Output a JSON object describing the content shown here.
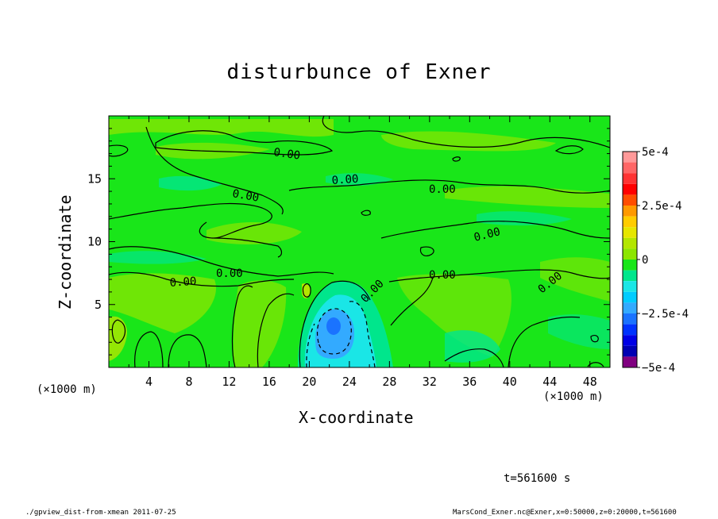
{
  "page": {
    "title": "disturbunce of Exner",
    "x_label": "X-coordinate",
    "y_label": "Z-coordinate",
    "x_unit_left": "(×1000 m)",
    "x_unit_right": "(×1000 m)",
    "time_label": "t=561600 s",
    "footer_left": "./gpview_dist-from-xmean  2011-07-25",
    "footer_right": "MarsCond_Exner.nc@Exner,x=0:50000,z=0:20000,t=561600"
  },
  "colors": {
    "field_base": "#19e619",
    "positive_light": "#8ce600",
    "negative_light": "#00e68c",
    "cyan": "#1ae6e6",
    "blue_light": "#33aaff",
    "blue_dark": "#1a73ff",
    "contour": "#000000"
  },
  "chart_data": {
    "type": "heatmap",
    "title": "disturbunce of Exner",
    "xlabel": "X-coordinate",
    "ylabel": "Z-coordinate",
    "xlim": [
      0,
      50
    ],
    "ylim": [
      0,
      20
    ],
    "x_ticks": [
      "4",
      "8",
      "12",
      "16",
      "20",
      "24",
      "28",
      "32",
      "36",
      "40",
      "44",
      "48"
    ],
    "y_ticks": [
      "5",
      "10",
      "15"
    ],
    "contour_labels": [
      "0.00",
      "0.00",
      "0.00",
      "0.00",
      "0.00",
      "0.00",
      "0.00",
      "0.00",
      "0.00",
      "0.00"
    ],
    "colorbar": {
      "tick_labels": [
        "5e-4",
        "2.5e-4",
        "0",
        "−2.5e-4",
        "−5e-4"
      ],
      "range": [
        -0.0005,
        0.0005
      ],
      "levels": [
        {
          "from": 0.00045,
          "to": 0.0005,
          "color": "#ff9999"
        },
        {
          "from": 0.0004,
          "to": 0.00045,
          "color": "#ff6666"
        },
        {
          "from": 0.00035,
          "to": 0.0004,
          "color": "#ff3333"
        },
        {
          "from": 0.0003,
          "to": 0.00035,
          "color": "#ff0000"
        },
        {
          "from": 0.00025,
          "to": 0.0003,
          "color": "#ff4d00"
        },
        {
          "from": 0.0002,
          "to": 0.00025,
          "color": "#ff9900"
        },
        {
          "from": 0.00015,
          "to": 0.0002,
          "color": "#ffcc00"
        },
        {
          "from": 0.0001,
          "to": 0.00015,
          "color": "#e6e600"
        },
        {
          "from": 5e-05,
          "to": 0.0001,
          "color": "#b3e600"
        },
        {
          "from": 0.0,
          "to": 5e-05,
          "color": "#8ce600"
        },
        {
          "from": -5e-05,
          "to": 0.0,
          "color": "#19e619"
        },
        {
          "from": -0.0001,
          "to": -5e-05,
          "color": "#00e68c"
        },
        {
          "from": -0.00015,
          "to": -0.0001,
          "color": "#1ae6e6"
        },
        {
          "from": -0.0002,
          "to": -0.00015,
          "color": "#00ccff"
        },
        {
          "from": -0.00025,
          "to": -0.0002,
          "color": "#33aaff"
        },
        {
          "from": -0.0003,
          "to": -0.00025,
          "color": "#1a73ff"
        },
        {
          "from": -0.00035,
          "to": -0.0003,
          "color": "#0033ff"
        },
        {
          "from": -0.0004,
          "to": -0.00035,
          "color": "#0000e6"
        },
        {
          "from": -0.00045,
          "to": -0.0004,
          "color": "#0000b3"
        },
        {
          "from": -0.0005,
          "to": -0.00045,
          "color": "#800080"
        }
      ]
    },
    "features": [
      {
        "kind": "negative_minimum",
        "x": 22.5,
        "z": 3.5,
        "value": -0.00028
      },
      {
        "kind": "cyan_region",
        "x_range": [
          19.5,
          26
        ],
        "z_range": [
          0,
          6
        ]
      }
    ]
  }
}
